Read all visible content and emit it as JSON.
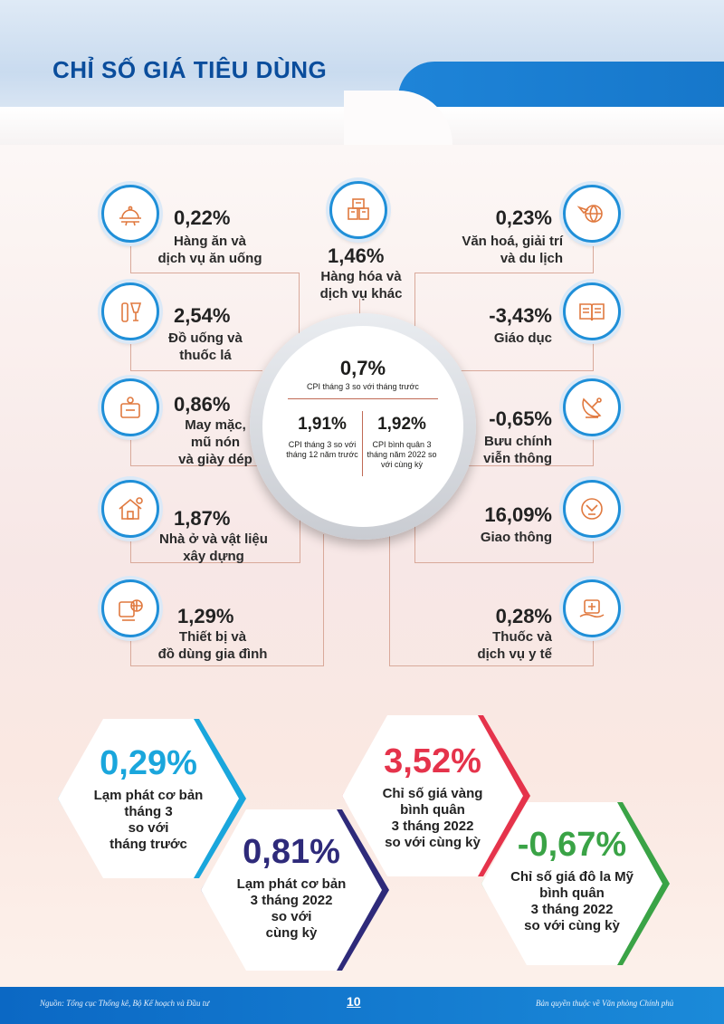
{
  "title": "CHỈ SỐ GIÁ TIÊU DÙNG",
  "center": {
    "main_value": "0,7%",
    "main_label": "CPI tháng 3 so với tháng trước",
    "left_value": "1,91%",
    "left_label": "CPI tháng 3 so với tháng 12 năm trước",
    "right_value": "1,92%",
    "right_label": "CPI bình quân 3 tháng năm 2022 so với cùng kỳ"
  },
  "groups": [
    {
      "value": "0,22%",
      "label_1": "Hàng ăn và",
      "label_2": "dịch vụ ăn uống",
      "icon": "food-tray-icon"
    },
    {
      "value": "1,46%",
      "label_1": "Hàng hóa và",
      "label_2": "dịch vụ khác",
      "icon": "goods-boxes-icon"
    },
    {
      "value": "0,23%",
      "label_1": "Văn hoá, giải trí",
      "label_2": "và du lịch",
      "icon": "globe-plane-icon"
    },
    {
      "value": "2,54%",
      "label_1": "Đồ uống và",
      "label_2": "thuốc lá",
      "icon": "drinks-icon"
    },
    {
      "value": "-3,43%",
      "label_1": "Giáo dục",
      "label_2": "",
      "icon": "book-icon"
    },
    {
      "value": "0,86%",
      "label_1": "May mặc,",
      "label_2": "mũ nón",
      "label_3": "và giày dép",
      "icon": "clothing-icon"
    },
    {
      "value": "-0,65%",
      "label_1": "Bưu chính",
      "label_2": "viễn thông",
      "icon": "satellite-dish-icon"
    },
    {
      "value": "1,87%",
      "label_1": "Nhà ở và vật liệu",
      "label_2": "xây dựng",
      "icon": "house-icon"
    },
    {
      "value": "16,09%",
      "label_1": "Giao thông",
      "label_2": "",
      "icon": "transport-icon"
    },
    {
      "value": "1,29%",
      "label_1": "Thiết bị và",
      "label_2": "đồ dùng gia đình",
      "icon": "appliance-icon"
    },
    {
      "value": "0,28%",
      "label_1": "Thuốc và",
      "label_2": "dịch vụ y tế",
      "icon": "medical-kit-icon"
    }
  ],
  "highlights": [
    {
      "value": "0,29%",
      "lines": [
        "Lạm phát cơ bản",
        "tháng 3",
        "so với",
        "tháng trước"
      ],
      "color": "#1aa6dc"
    },
    {
      "value": "0,81%",
      "lines": [
        "Lạm phát cơ bản",
        "3 tháng 2022",
        "so với",
        "cùng kỳ"
      ],
      "color": "#2e2a7a"
    },
    {
      "value": "3,52%",
      "lines": [
        "Chỉ số giá vàng",
        "bình quân",
        "3 tháng 2022",
        "so với cùng kỳ"
      ],
      "color": "#e5334b"
    },
    {
      "value": "-0,67%",
      "lines": [
        "Chỉ số giá đô la Mỹ",
        "bình quân",
        "3 tháng 2022",
        "so với cùng kỳ"
      ],
      "color": "#3aa346"
    }
  ],
  "footer": {
    "source": "Nguồn: Tổng cục Thống kê, Bộ Kế hoạch và Đầu tư",
    "page": "10",
    "copyright": "Bản quyền thuộc về Văn phòng Chính phủ"
  },
  "colors": {
    "accent_blue": "#1f8fd8",
    "title_blue": "#0a4d9c",
    "line": "#d9a99a"
  }
}
